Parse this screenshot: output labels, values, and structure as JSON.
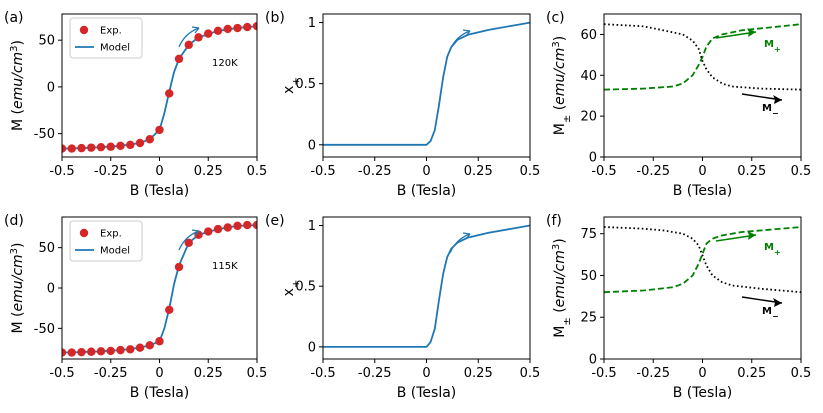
{
  "colors": {
    "model": "#1f77b4",
    "exp": "#d62728",
    "mplus": "#008000",
    "mminus": "#000000"
  },
  "chart_data": [
    {
      "panel": "(a)",
      "type": "scatter+line",
      "xlabel": "B (Tesla)",
      "ylabel_main": "M (",
      "ylabel_unit": "emu/cm",
      "ylabel_sup": "3",
      "ylabel_close": ")",
      "xlim": [
        -0.5,
        0.5
      ],
      "ylim": [
        -75,
        78
      ],
      "xticks": [
        "-0.5",
        "-0.25",
        "0",
        "0.25",
        "0.5"
      ],
      "xtick_values": [
        -0.5,
        -0.25,
        0,
        0.25,
        0.5
      ],
      "yticks": [
        "-50",
        "0",
        "50"
      ],
      "ytick_values": [
        -50,
        0,
        50
      ],
      "legend": [
        "Exp.",
        "Model"
      ],
      "legend_position": "top-left",
      "annotation": "120K",
      "series": [
        {
          "name": "Exp.",
          "kind": "markers",
          "x": [
            -0.5,
            -0.45,
            -0.4,
            -0.35,
            -0.3,
            -0.25,
            -0.2,
            -0.15,
            -0.1,
            -0.05,
            0,
            0.05,
            0.1,
            0.15,
            0.2,
            0.25,
            0.3,
            0.35,
            0.4,
            0.45,
            0.5
          ],
          "y": [
            -66,
            -66,
            -65.5,
            -65,
            -64.5,
            -64,
            -63,
            -62,
            -60,
            -56,
            -46,
            -7,
            30,
            45,
            53,
            57,
            60,
            62,
            63,
            64,
            65
          ]
        },
        {
          "name": "Model",
          "kind": "line",
          "x": [
            -0.5,
            -0.4,
            -0.3,
            -0.2,
            -0.1,
            -0.05,
            0,
            0.025,
            0.05,
            0.075,
            0.1,
            0.15,
            0.2,
            0.3,
            0.4,
            0.5
          ],
          "y": [
            -66,
            -65.5,
            -64.5,
            -63,
            -60,
            -56,
            -46,
            -28,
            -5,
            16,
            30,
            45,
            53,
            60,
            63,
            65
          ]
        }
      ]
    },
    {
      "panel": "(b)",
      "type": "line",
      "xlabel": "B (Tesla)",
      "ylabel_main": "x",
      "ylabel_sub": "+",
      "xlim": [
        -0.5,
        0.5
      ],
      "ylim": [
        -0.1,
        1.07
      ],
      "xticks": [
        "-0.5",
        "-0.25",
        "0",
        "0.25",
        "0.5"
      ],
      "xtick_values": [
        -0.5,
        -0.25,
        0,
        0.25,
        0.5
      ],
      "yticks": [
        "0",
        "0.5",
        "1"
      ],
      "ytick_values": [
        0,
        0.5,
        1
      ],
      "series": [
        {
          "kind": "line",
          "x": [
            -0.5,
            0,
            0.02,
            0.04,
            0.06,
            0.08,
            0.1,
            0.12,
            0.15,
            0.2,
            0.3,
            0.4,
            0.5
          ],
          "y": [
            0,
            0,
            0.03,
            0.12,
            0.32,
            0.55,
            0.72,
            0.8,
            0.86,
            0.9,
            0.94,
            0.97,
            1.0
          ]
        }
      ]
    },
    {
      "panel": "(c)",
      "type": "line",
      "xlabel": "B (Tesla)",
      "ylabel_main": "M",
      "ylabel_sub": "±",
      "ylabel_open": "  (",
      "ylabel_unit": "emu/cm",
      "ylabel_sup": "3",
      "ylabel_close": ")",
      "xlim": [
        -0.5,
        0.5
      ],
      "ylim": [
        0,
        70
      ],
      "xticks": [
        "-0.5",
        "-0.25",
        "0",
        "0.25",
        "0.5"
      ],
      "xtick_values": [
        -0.5,
        -0.25,
        0,
        0.25,
        0.5
      ],
      "yticks": [
        "0",
        "20",
        "40",
        "60"
      ],
      "ytick_values": [
        0,
        20,
        40,
        60
      ],
      "mplus_label": "M",
      "mplus_sub": "+",
      "mminus_label": "M",
      "mminus_sub": "−",
      "series": [
        {
          "name": "M+",
          "kind": "dashed",
          "x": [
            -0.5,
            -0.3,
            -0.15,
            -0.1,
            -0.05,
            -0.02,
            0,
            0.02,
            0.05,
            0.1,
            0.2,
            0.3,
            0.5
          ],
          "y": [
            33,
            33.5,
            34.5,
            36,
            40,
            45,
            49,
            54,
            58,
            60,
            62,
            63,
            65
          ]
        },
        {
          "name": "M-",
          "kind": "dotted",
          "x": [
            -0.5,
            -0.3,
            -0.2,
            -0.1,
            -0.05,
            -0.02,
            0,
            0.02,
            0.05,
            0.1,
            0.15,
            0.3,
            0.5
          ],
          "y": [
            65,
            64,
            62,
            60,
            57,
            53,
            47,
            43,
            39,
            36,
            34.5,
            33.5,
            33
          ]
        }
      ]
    },
    {
      "panel": "(d)",
      "type": "scatter+line",
      "xlabel": "B (Tesla)",
      "ylabel_main": "M (",
      "ylabel_unit": "emu/cm",
      "ylabel_sup": "3",
      "ylabel_close": ")",
      "xlim": [
        -0.5,
        0.5
      ],
      "ylim": [
        -88,
        88
      ],
      "xticks": [
        "-0.5",
        "-0.25",
        "0",
        "0.25",
        "0.5"
      ],
      "xtick_values": [
        -0.5,
        -0.25,
        0,
        0.25,
        0.5
      ],
      "yticks": [
        "-50",
        "0",
        "50"
      ],
      "ytick_values": [
        -50,
        0,
        50
      ],
      "legend": [
        "Exp.",
        "Model"
      ],
      "legend_position": "top-left",
      "annotation": "115K",
      "series": [
        {
          "name": "Exp.",
          "kind": "markers",
          "x": [
            -0.5,
            -0.45,
            -0.4,
            -0.35,
            -0.3,
            -0.25,
            -0.2,
            -0.15,
            -0.1,
            -0.05,
            0,
            0.05,
            0.1,
            0.15,
            0.2,
            0.25,
            0.3,
            0.35,
            0.4,
            0.45,
            0.5
          ],
          "y": [
            -80,
            -80,
            -79.5,
            -79,
            -78.5,
            -78,
            -77,
            -76,
            -74,
            -71,
            -66,
            -27,
            26,
            56,
            66,
            70,
            73,
            75,
            77,
            78,
            78
          ]
        },
        {
          "name": "Model",
          "kind": "line",
          "x": [
            -0.5,
            -0.4,
            -0.3,
            -0.2,
            -0.1,
            -0.05,
            0,
            0.025,
            0.05,
            0.075,
            0.1,
            0.15,
            0.2,
            0.3,
            0.4,
            0.5
          ],
          "y": [
            -80,
            -79.5,
            -78.5,
            -77,
            -74,
            -71,
            -66,
            -50,
            -25,
            5,
            28,
            56,
            66,
            73,
            77,
            78
          ]
        }
      ]
    },
    {
      "panel": "(e)",
      "type": "line",
      "xlabel": "B (Tesla)",
      "ylabel_main": "x",
      "ylabel_sub": "+",
      "xlim": [
        -0.5,
        0.5
      ],
      "ylim": [
        -0.1,
        1.07
      ],
      "xticks": [
        "-0.5",
        "-0.25",
        "0",
        "0.25",
        "0.5"
      ],
      "xtick_values": [
        -0.5,
        -0.25,
        0,
        0.25,
        0.5
      ],
      "yticks": [
        "0",
        "0.5",
        "1"
      ],
      "ytick_values": [
        0,
        0.5,
        1
      ],
      "series": [
        {
          "kind": "line",
          "x": [
            -0.5,
            0,
            0.02,
            0.04,
            0.06,
            0.08,
            0.1,
            0.12,
            0.15,
            0.2,
            0.3,
            0.4,
            0.5
          ],
          "y": [
            0,
            0,
            0.04,
            0.15,
            0.38,
            0.6,
            0.74,
            0.81,
            0.86,
            0.9,
            0.94,
            0.97,
            1.0
          ]
        }
      ]
    },
    {
      "panel": "(f)",
      "type": "line",
      "xlabel": "B (Tesla)",
      "ylabel_main": "M",
      "ylabel_sub": "±",
      "ylabel_open": "  (",
      "ylabel_unit": "emu/cm",
      "ylabel_sup": "3",
      "ylabel_close": ")",
      "xlim": [
        -0.5,
        0.5
      ],
      "ylim": [
        0,
        85
      ],
      "xticks": [
        "-0.5",
        "-0.25",
        "0",
        "0.25",
        "0.5"
      ],
      "xtick_values": [
        -0.5,
        -0.25,
        0,
        0.25,
        0.5
      ],
      "yticks": [
        "0",
        "25",
        "50",
        "75"
      ],
      "ytick_values": [
        0,
        25,
        50,
        75
      ],
      "mplus_label": "M",
      "mplus_sub": "+",
      "mminus_label": "M",
      "mminus_sub": "−",
      "series": [
        {
          "name": "M+",
          "kind": "dashed",
          "x": [
            -0.5,
            -0.3,
            -0.15,
            -0.1,
            -0.05,
            -0.02,
            0,
            0.02,
            0.05,
            0.1,
            0.2,
            0.3,
            0.5
          ],
          "y": [
            40,
            41,
            43,
            45,
            50,
            57,
            63,
            69,
            72,
            74,
            76,
            77,
            79
          ]
        },
        {
          "name": "M-",
          "kind": "dotted",
          "x": [
            -0.5,
            -0.3,
            -0.2,
            -0.1,
            -0.05,
            -0.02,
            0,
            0.02,
            0.05,
            0.1,
            0.15,
            0.3,
            0.5
          ],
          "y": [
            79,
            78,
            77,
            75,
            72,
            68,
            62,
            56,
            50,
            46,
            44,
            42,
            40
          ]
        }
      ]
    }
  ]
}
